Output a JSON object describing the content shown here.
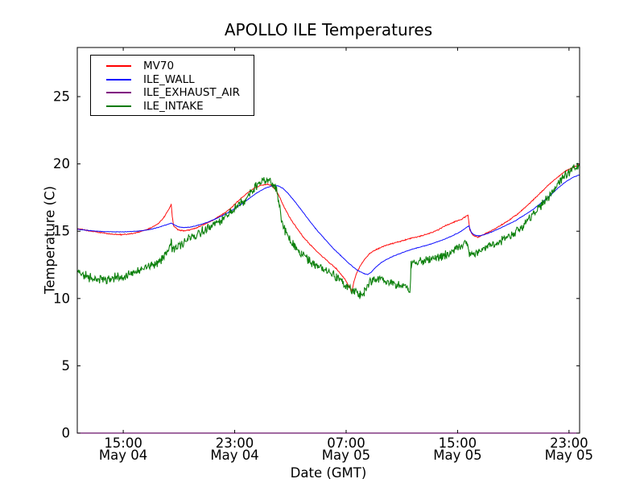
{
  "chart_data": {
    "type": "line",
    "title": "APOLLO ILE Temperatures",
    "xlabel": "Date (GMT)",
    "ylabel": "Temperature (C)",
    "x_unit": "hours since May 04 00:00 GMT (read from axis tick labels)",
    "xlim": [
      11.7,
      47.76
    ],
    "ylim": [
      0,
      28.65
    ],
    "yticks": [
      0,
      5,
      10,
      15,
      20,
      25
    ],
    "xticks": [
      {
        "value": 15,
        "time": "15:00",
        "date": "May 04"
      },
      {
        "value": 23,
        "time": "23:00",
        "date": "May 04"
      },
      {
        "value": 31,
        "time": "07:00",
        "date": "May 05"
      },
      {
        "value": 39,
        "time": "15:00",
        "date": "May 05"
      },
      {
        "value": 47,
        "time": "23:00",
        "date": "May 05"
      }
    ],
    "grid": false,
    "legend_position": "upper left",
    "axis_color": "#000000",
    "background_color": "#ffffff",
    "series": [
      {
        "name": "MV70",
        "color": "#ff0000",
        "noise": 0.025,
        "points": [
          [
            11.7,
            15.2
          ],
          [
            12.4,
            15.05
          ],
          [
            13.3,
            14.9
          ],
          [
            14.2,
            14.78
          ],
          [
            14.9,
            14.75
          ],
          [
            15.5,
            14.8
          ],
          [
            16.2,
            14.95
          ],
          [
            16.9,
            15.2
          ],
          [
            17.5,
            15.55
          ],
          [
            17.9,
            16.0
          ],
          [
            18.2,
            16.5
          ],
          [
            18.44,
            17.0
          ],
          [
            18.52,
            16.1
          ],
          [
            18.62,
            15.4
          ],
          [
            18.9,
            15.12
          ],
          [
            19.3,
            15.02
          ],
          [
            19.75,
            15.08
          ],
          [
            20.3,
            15.28
          ],
          [
            20.9,
            15.55
          ],
          [
            21.5,
            15.85
          ],
          [
            22.1,
            16.25
          ],
          [
            22.7,
            16.7
          ],
          [
            23.3,
            17.3
          ],
          [
            23.9,
            17.85
          ],
          [
            24.5,
            18.25
          ],
          [
            25.0,
            18.45
          ],
          [
            25.35,
            18.5
          ],
          [
            25.6,
            18.42
          ],
          [
            25.9,
            18.15
          ],
          [
            26.2,
            17.6
          ],
          [
            26.5,
            16.9
          ],
          [
            26.9,
            16.1
          ],
          [
            27.4,
            15.3
          ],
          [
            27.9,
            14.6
          ],
          [
            28.5,
            13.9
          ],
          [
            29.1,
            13.3
          ],
          [
            29.7,
            12.75
          ],
          [
            30.3,
            12.2
          ],
          [
            30.8,
            11.6
          ],
          [
            31.1,
            11.1
          ],
          [
            31.3,
            10.75
          ],
          [
            31.42,
            10.55
          ],
          [
            31.55,
            11.2
          ],
          [
            31.75,
            11.9
          ],
          [
            32.0,
            12.4
          ],
          [
            32.3,
            12.9
          ],
          [
            32.7,
            13.35
          ],
          [
            33.1,
            13.6
          ],
          [
            33.6,
            13.85
          ],
          [
            34.2,
            14.05
          ],
          [
            34.9,
            14.25
          ],
          [
            35.6,
            14.45
          ],
          [
            36.3,
            14.62
          ],
          [
            37.0,
            14.85
          ],
          [
            37.6,
            15.1
          ],
          [
            38.2,
            15.45
          ],
          [
            38.8,
            15.7
          ],
          [
            39.3,
            15.9
          ],
          [
            39.75,
            16.2
          ],
          [
            39.88,
            15.1
          ],
          [
            40.1,
            14.7
          ],
          [
            40.45,
            14.55
          ],
          [
            40.8,
            14.7
          ],
          [
            41.2,
            14.92
          ],
          [
            41.7,
            15.18
          ],
          [
            42.2,
            15.5
          ],
          [
            42.8,
            15.9
          ],
          [
            43.4,
            16.35
          ],
          [
            44.0,
            16.9
          ],
          [
            44.6,
            17.5
          ],
          [
            45.2,
            18.1
          ],
          [
            45.8,
            18.7
          ],
          [
            46.3,
            19.1
          ],
          [
            46.8,
            19.5
          ],
          [
            47.3,
            19.75
          ],
          [
            47.76,
            19.95
          ]
        ]
      },
      {
        "name": "ILE_WALL",
        "color": "#0000ff",
        "noise": 0.012,
        "points": [
          [
            11.7,
            15.15
          ],
          [
            12.5,
            15.05
          ],
          [
            13.4,
            14.98
          ],
          [
            14.3,
            14.95
          ],
          [
            15.2,
            14.95
          ],
          [
            16.0,
            15.0
          ],
          [
            16.8,
            15.1
          ],
          [
            17.5,
            15.28
          ],
          [
            18.1,
            15.48
          ],
          [
            18.44,
            15.6
          ],
          [
            18.7,
            15.45
          ],
          [
            19.0,
            15.32
          ],
          [
            19.35,
            15.27
          ],
          [
            19.8,
            15.3
          ],
          [
            20.4,
            15.45
          ],
          [
            21.0,
            15.65
          ],
          [
            21.6,
            15.9
          ],
          [
            22.2,
            16.2
          ],
          [
            22.8,
            16.55
          ],
          [
            23.4,
            16.95
          ],
          [
            24.0,
            17.4
          ],
          [
            24.6,
            17.85
          ],
          [
            25.2,
            18.2
          ],
          [
            25.7,
            18.38
          ],
          [
            26.1,
            18.38
          ],
          [
            26.45,
            18.2
          ],
          [
            26.8,
            17.85
          ],
          [
            27.2,
            17.35
          ],
          [
            27.7,
            16.7
          ],
          [
            28.2,
            16.0
          ],
          [
            28.8,
            15.2
          ],
          [
            29.4,
            14.5
          ],
          [
            30.0,
            13.8
          ],
          [
            30.6,
            13.2
          ],
          [
            31.2,
            12.6
          ],
          [
            31.8,
            12.1
          ],
          [
            32.3,
            11.85
          ],
          [
            32.55,
            11.78
          ],
          [
            32.8,
            11.95
          ],
          [
            33.1,
            12.3
          ],
          [
            33.5,
            12.65
          ],
          [
            33.9,
            12.9
          ],
          [
            34.4,
            13.15
          ],
          [
            35.0,
            13.4
          ],
          [
            35.7,
            13.65
          ],
          [
            36.4,
            13.85
          ],
          [
            37.1,
            14.05
          ],
          [
            37.8,
            14.3
          ],
          [
            38.5,
            14.6
          ],
          [
            39.1,
            14.9
          ],
          [
            39.6,
            15.25
          ],
          [
            39.82,
            15.4
          ],
          [
            39.98,
            14.9
          ],
          [
            40.25,
            14.7
          ],
          [
            40.55,
            14.65
          ],
          [
            40.95,
            14.75
          ],
          [
            41.45,
            14.95
          ],
          [
            42.0,
            15.2
          ],
          [
            42.6,
            15.5
          ],
          [
            43.2,
            15.8
          ],
          [
            43.8,
            16.2
          ],
          [
            44.4,
            16.6
          ],
          [
            45.0,
            17.1
          ],
          [
            45.6,
            17.6
          ],
          [
            46.2,
            18.2
          ],
          [
            46.8,
            18.7
          ],
          [
            47.3,
            19.0
          ],
          [
            47.76,
            19.2
          ]
        ]
      },
      {
        "name": "ILE_EXHAUST_AIR",
        "color": "#800080",
        "noise": 0,
        "points": [
          [
            11.7,
            0
          ],
          [
            47.76,
            0
          ]
        ]
      },
      {
        "name": "ILE_INTAKE",
        "color": "#007a00",
        "noise": 0.21,
        "points": [
          [
            11.7,
            12.0
          ],
          [
            12.2,
            11.7
          ],
          [
            12.9,
            11.45
          ],
          [
            13.5,
            11.4
          ],
          [
            14.2,
            11.5
          ],
          [
            14.9,
            11.65
          ],
          [
            15.6,
            11.85
          ],
          [
            16.3,
            12.1
          ],
          [
            17.0,
            12.4
          ],
          [
            17.6,
            12.8
          ],
          [
            18.1,
            13.3
          ],
          [
            18.35,
            13.9
          ],
          [
            18.44,
            14.35
          ],
          [
            18.52,
            13.55
          ],
          [
            18.8,
            13.75
          ],
          [
            19.2,
            14.1
          ],
          [
            19.7,
            14.45
          ],
          [
            20.3,
            14.8
          ],
          [
            20.9,
            15.1
          ],
          [
            21.5,
            15.45
          ],
          [
            22.1,
            15.85
          ],
          [
            22.7,
            16.35
          ],
          [
            23.3,
            16.9
          ],
          [
            23.8,
            17.4
          ],
          [
            24.2,
            17.9
          ],
          [
            24.5,
            18.35
          ],
          [
            24.8,
            18.65
          ],
          [
            25.1,
            18.8
          ],
          [
            25.4,
            18.75
          ],
          [
            25.7,
            18.6
          ],
          [
            25.95,
            18.2
          ],
          [
            26.15,
            17.2
          ],
          [
            26.35,
            15.9
          ],
          [
            26.6,
            15.1
          ],
          [
            26.9,
            14.5
          ],
          [
            27.3,
            13.9
          ],
          [
            27.8,
            13.3
          ],
          [
            28.3,
            12.85
          ],
          [
            28.8,
            12.5
          ],
          [
            29.3,
            12.2
          ],
          [
            29.8,
            11.95
          ],
          [
            30.3,
            11.6
          ],
          [
            30.8,
            11.15
          ],
          [
            31.2,
            10.8
          ],
          [
            31.6,
            10.5
          ],
          [
            32.0,
            10.3
          ],
          [
            32.3,
            10.55
          ],
          [
            32.6,
            11.1
          ],
          [
            32.9,
            11.35
          ],
          [
            33.3,
            11.4
          ],
          [
            33.8,
            11.35
          ],
          [
            34.3,
            11.15
          ],
          [
            34.7,
            10.95
          ],
          [
            35.0,
            11.1
          ],
          [
            35.3,
            11.0
          ],
          [
            35.45,
            10.5
          ],
          [
            35.58,
            10.4
          ],
          [
            35.66,
            12.55
          ],
          [
            36.0,
            12.7
          ],
          [
            36.5,
            12.8
          ],
          [
            37.0,
            12.9
          ],
          [
            37.5,
            13.05
          ],
          [
            38.0,
            13.2
          ],
          [
            38.5,
            13.45
          ],
          [
            39.0,
            13.75
          ],
          [
            39.4,
            14.0
          ],
          [
            39.7,
            14.2
          ],
          [
            39.85,
            13.25
          ],
          [
            40.1,
            13.35
          ],
          [
            40.5,
            13.55
          ],
          [
            41.0,
            13.75
          ],
          [
            41.5,
            14.0
          ],
          [
            42.0,
            14.2
          ],
          [
            42.5,
            14.5
          ],
          [
            43.0,
            14.8
          ],
          [
            43.5,
            15.2
          ],
          [
            44.0,
            15.7
          ],
          [
            44.5,
            16.3
          ],
          [
            45.0,
            16.9
          ],
          [
            45.5,
            17.55
          ],
          [
            46.0,
            18.2
          ],
          [
            46.5,
            18.9
          ],
          [
            47.0,
            19.4
          ],
          [
            47.4,
            19.7
          ],
          [
            47.76,
            19.9
          ]
        ]
      }
    ]
  }
}
